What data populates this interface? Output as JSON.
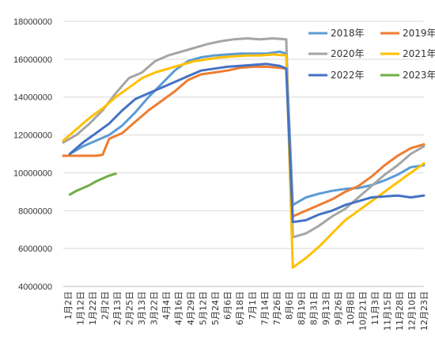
{
  "chart_data": {
    "type": "line",
    "ylim": [
      4000000,
      18000000
    ],
    "yticks": [
      "18000000",
      "16000000",
      "14000000",
      "12000000",
      "10000000",
      "8000000",
      "6000000",
      "4000000"
    ],
    "x_tick_labels": [
      "1月2日",
      "1月12日",
      "1月22日",
      "2月2日",
      "2月13日",
      "2月25日",
      "3月13日",
      "3月22日",
      "4月4日",
      "4月16日",
      "4月29日",
      "5月12日",
      "5月24日",
      "6月6日",
      "6月18日",
      "7月1日",
      "7月14日",
      "7月26日",
      "8月6日",
      "8月19日",
      "8月31日",
      "9月13日",
      "9月26日",
      "10月8日",
      "10月21日",
      "11月3日",
      "11月15日",
      "11月28日",
      "12月10日",
      "12月23日"
    ],
    "grid": "horizontal",
    "legend_position": "top-right",
    "series": [
      {
        "name": "2018年",
        "color": "#5b9bd5",
        "points": [
          [
            1,
            11000000
          ],
          [
            3,
            11400000
          ],
          [
            5,
            11700000
          ],
          [
            7,
            12000000
          ],
          [
            9,
            12500000
          ],
          [
            11,
            13200000
          ],
          [
            13,
            14000000
          ],
          [
            15,
            14700000
          ],
          [
            17,
            15400000
          ],
          [
            19,
            15900000
          ],
          [
            21,
            16100000
          ],
          [
            23,
            16200000
          ],
          [
            25,
            16250000
          ],
          [
            27,
            16300000
          ],
          [
            29,
            16300000
          ],
          [
            31,
            16300000
          ],
          [
            33,
            16400000
          ],
          [
            34,
            16300000
          ],
          [
            35,
            8300000
          ],
          [
            37,
            8700000
          ],
          [
            39,
            8900000
          ],
          [
            41,
            9050000
          ],
          [
            43,
            9150000
          ],
          [
            45,
            9200000
          ],
          [
            47,
            9350000
          ],
          [
            49,
            9600000
          ],
          [
            51,
            9900000
          ],
          [
            53,
            10300000
          ],
          [
            55,
            10400000
          ]
        ]
      },
      {
        "name": "2019年",
        "color": "#ed7d31",
        "points": [
          [
            0,
            10900000
          ],
          [
            5,
            10900000
          ],
          [
            6,
            10950000
          ],
          [
            7,
            11800000
          ],
          [
            9,
            12100000
          ],
          [
            11,
            12700000
          ],
          [
            13,
            13300000
          ],
          [
            15,
            13800000
          ],
          [
            17,
            14300000
          ],
          [
            19,
            14900000
          ],
          [
            21,
            15200000
          ],
          [
            23,
            15300000
          ],
          [
            25,
            15400000
          ],
          [
            27,
            15550000
          ],
          [
            29,
            15600000
          ],
          [
            31,
            15600000
          ],
          [
            33,
            15550000
          ],
          [
            34,
            15500000
          ],
          [
            35,
            7700000
          ],
          [
            37,
            8000000
          ],
          [
            39,
            8300000
          ],
          [
            41,
            8600000
          ],
          [
            43,
            9000000
          ],
          [
            45,
            9300000
          ],
          [
            47,
            9800000
          ],
          [
            49,
            10400000
          ],
          [
            51,
            10900000
          ],
          [
            53,
            11300000
          ],
          [
            55,
            11500000
          ]
        ]
      },
      {
        "name": "2020年",
        "color": "#a5a5a5",
        "points": [
          [
            0,
            11600000
          ],
          [
            2,
            12000000
          ],
          [
            4,
            12600000
          ],
          [
            6,
            13300000
          ],
          [
            8,
            14200000
          ],
          [
            10,
            15000000
          ],
          [
            12,
            15300000
          ],
          [
            14,
            15900000
          ],
          [
            16,
            16200000
          ],
          [
            18,
            16400000
          ],
          [
            20,
            16600000
          ],
          [
            22,
            16800000
          ],
          [
            24,
            16950000
          ],
          [
            26,
            17050000
          ],
          [
            28,
            17100000
          ],
          [
            30,
            17050000
          ],
          [
            32,
            17100000
          ],
          [
            34,
            17050000
          ],
          [
            35,
            6600000
          ],
          [
            37,
            6800000
          ],
          [
            39,
            7200000
          ],
          [
            41,
            7700000
          ],
          [
            43,
            8100000
          ],
          [
            45,
            8700000
          ],
          [
            47,
            9300000
          ],
          [
            49,
            9900000
          ],
          [
            51,
            10400000
          ],
          [
            53,
            11000000
          ],
          [
            55,
            11400000
          ]
        ]
      },
      {
        "name": "2021年",
        "color": "#ffc000",
        "points": [
          [
            0,
            11700000
          ],
          [
            2,
            12300000
          ],
          [
            4,
            12900000
          ],
          [
            6,
            13400000
          ],
          [
            8,
            14000000
          ],
          [
            10,
            14500000
          ],
          [
            12,
            15000000
          ],
          [
            14,
            15300000
          ],
          [
            16,
            15500000
          ],
          [
            18,
            15700000
          ],
          [
            20,
            15900000
          ],
          [
            22,
            16000000
          ],
          [
            24,
            16100000
          ],
          [
            26,
            16150000
          ],
          [
            28,
            16200000
          ],
          [
            30,
            16200000
          ],
          [
            32,
            16250000
          ],
          [
            34,
            16200000
          ],
          [
            35,
            5000000
          ],
          [
            37,
            5500000
          ],
          [
            39,
            6100000
          ],
          [
            41,
            6800000
          ],
          [
            43,
            7500000
          ],
          [
            45,
            8000000
          ],
          [
            47,
            8500000
          ],
          [
            49,
            9000000
          ],
          [
            51,
            9500000
          ],
          [
            53,
            10000000
          ],
          [
            55,
            10500000
          ]
        ]
      },
      {
        "name": "2022年",
        "color": "#4472c4",
        "points": [
          [
            1,
            11000000
          ],
          [
            3,
            11600000
          ],
          [
            5,
            12100000
          ],
          [
            7,
            12600000
          ],
          [
            9,
            13300000
          ],
          [
            11,
            13900000
          ],
          [
            13,
            14200000
          ],
          [
            15,
            14500000
          ],
          [
            17,
            14800000
          ],
          [
            19,
            15100000
          ],
          [
            21,
            15400000
          ],
          [
            23,
            15500000
          ],
          [
            25,
            15600000
          ],
          [
            27,
            15650000
          ],
          [
            29,
            15700000
          ],
          [
            31,
            15750000
          ],
          [
            33,
            15650000
          ],
          [
            34,
            15500000
          ],
          [
            35,
            7400000
          ],
          [
            37,
            7500000
          ],
          [
            39,
            7800000
          ],
          [
            41,
            8000000
          ],
          [
            43,
            8300000
          ],
          [
            45,
            8500000
          ],
          [
            47,
            8700000
          ],
          [
            49,
            8750000
          ],
          [
            51,
            8800000
          ],
          [
            53,
            8700000
          ],
          [
            55,
            8800000
          ]
        ]
      },
      {
        "name": "2023年",
        "color": "#70ad47",
        "points": [
          [
            1,
            8850000
          ],
          [
            2,
            9050000
          ],
          [
            3,
            9200000
          ],
          [
            4,
            9350000
          ],
          [
            5,
            9550000
          ],
          [
            6,
            9700000
          ],
          [
            7,
            9850000
          ],
          [
            8,
            9950000
          ]
        ]
      }
    ]
  }
}
